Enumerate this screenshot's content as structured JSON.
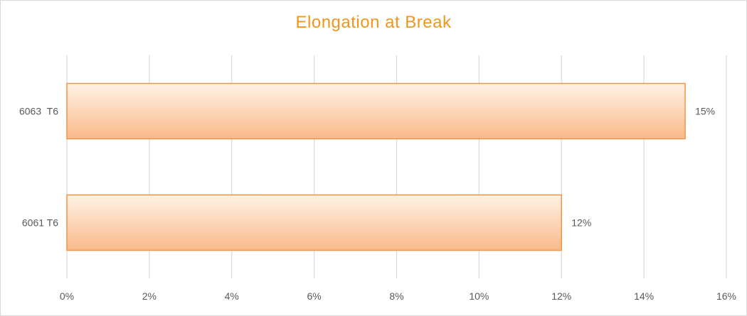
{
  "chart_data": {
    "type": "bar",
    "orientation": "horizontal",
    "title": "Elongation at Break",
    "xlabel": "",
    "ylabel": "",
    "categories": [
      "6063  T6",
      "6061 T6"
    ],
    "values": [
      15,
      12
    ],
    "value_labels": [
      "15%",
      "12%"
    ],
    "xlim": [
      0,
      16
    ],
    "x_ticks": [
      0,
      2,
      4,
      6,
      8,
      10,
      12,
      14,
      16
    ],
    "x_tick_labels": [
      "0%",
      "2%",
      "4%",
      "6%",
      "8%",
      "10%",
      "12%",
      "14%",
      "16%"
    ],
    "grid": "vertical",
    "legend": "none",
    "colors": {
      "title": "#f0961e",
      "bar_top": "#fff2e6",
      "bar_bottom": "#f9b98a",
      "bar_border": "#f0964b",
      "grid": "#d9d9d9",
      "text": "#595959"
    }
  }
}
